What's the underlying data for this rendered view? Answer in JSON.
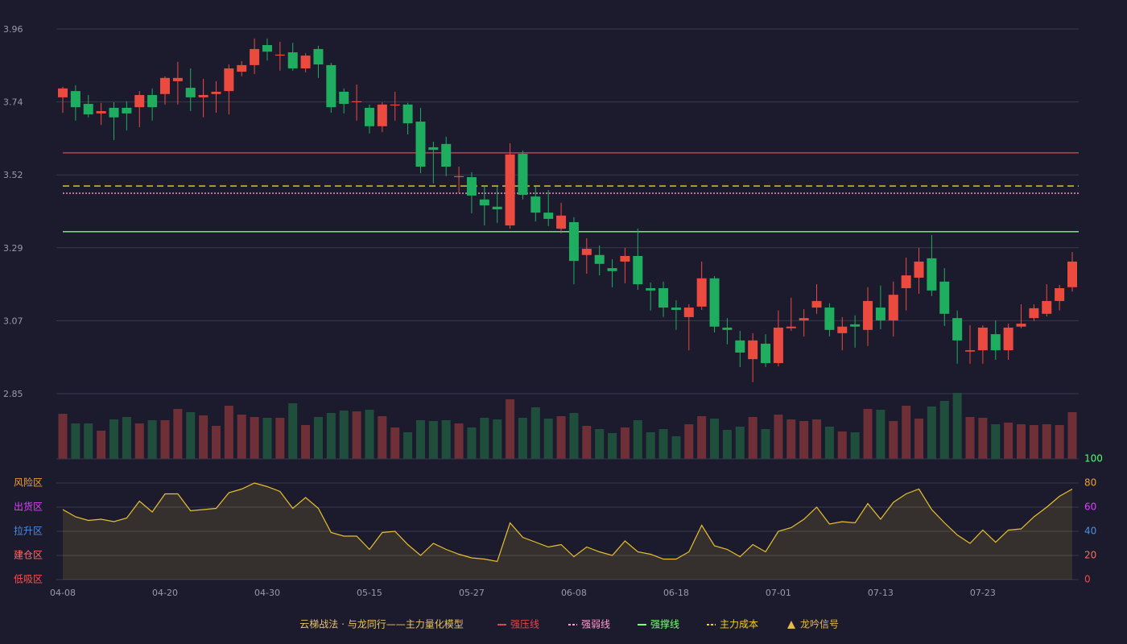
{
  "chart_data": {
    "type": "candlestick",
    "title": "云梯战法 · 与龙同行——主力量化模型",
    "categories": [
      "04-08",
      null,
      null,
      null,
      null,
      null,
      null,
      null,
      "04-20",
      null,
      null,
      null,
      null,
      null,
      null,
      null,
      "04-30",
      null,
      null,
      null,
      null,
      null,
      null,
      null,
      "05-15",
      null,
      null,
      null,
      null,
      null,
      null,
      null,
      "05-27",
      null,
      null,
      null,
      null,
      null,
      null,
      null,
      "06-08",
      null,
      null,
      null,
      null,
      null,
      null,
      null,
      "06-18",
      null,
      null,
      null,
      null,
      null,
      null,
      null,
      "07-01",
      null,
      null,
      null,
      null,
      null,
      null,
      null,
      "07-13",
      null,
      null,
      null,
      null,
      null,
      null,
      null,
      "07-23",
      null,
      null,
      null,
      null,
      null,
      null,
      null
    ],
    "open": [
      3.752,
      3.771,
      3.732,
      3.703,
      3.72,
      3.72,
      3.722,
      3.759,
      3.762,
      3.801,
      3.781,
      3.752,
      3.762,
      3.771,
      3.83,
      3.85,
      3.911,
      3.879,
      3.889,
      3.84,
      3.899,
      3.85,
      3.769,
      3.737,
      3.72,
      3.664,
      3.727,
      3.73,
      3.678,
      3.6,
      3.61,
      3.509,
      3.509,
      3.441,
      3.419,
      3.362,
      3.58,
      3.45,
      3.401,
      3.352,
      3.372,
      3.272,
      3.272,
      3.232,
      3.252,
      3.269,
      3.171,
      3.171,
      3.112,
      3.083,
      3.115,
      3.201,
      3.051,
      3.012,
      2.955,
      3.002,
      2.943,
      3.049,
      3.073,
      3.112,
      3.112,
      3.034,
      3.061,
      3.044,
      3.112,
      3.073,
      3.171,
      3.203,
      3.262,
      3.191,
      3.08,
      2.978,
      2.982,
      3.031,
      2.982,
      3.054,
      3.08,
      3.093,
      3.132,
      3.174
    ],
    "high": [
      3.784,
      3.789,
      3.759,
      3.735,
      3.737,
      3.74,
      3.771,
      3.779,
      3.816,
      3.86,
      3.84,
      3.808,
      3.801,
      3.852,
      3.862,
      3.931,
      3.931,
      3.921,
      3.918,
      3.886,
      3.909,
      3.857,
      3.779,
      3.791,
      3.73,
      3.737,
      3.769,
      3.735,
      3.72,
      3.617,
      3.632,
      3.541,
      3.524,
      3.482,
      3.48,
      3.612,
      3.59,
      3.48,
      3.47,
      3.431,
      3.387,
      3.323,
      3.301,
      3.259,
      3.294,
      3.352,
      3.188,
      3.191,
      3.134,
      3.122,
      3.252,
      3.208,
      3.08,
      3.041,
      3.034,
      3.031,
      3.103,
      3.142,
      3.107,
      3.183,
      3.125,
      3.083,
      3.088,
      3.174,
      3.179,
      3.191,
      3.264,
      3.294,
      3.333,
      3.232,
      3.103,
      3.058,
      3.058,
      3.073,
      3.063,
      3.122,
      3.122,
      3.183,
      3.181,
      3.281
    ],
    "low": [
      3.705,
      3.681,
      3.691,
      3.668,
      3.622,
      3.651,
      3.661,
      3.681,
      3.73,
      3.73,
      3.71,
      3.691,
      3.705,
      3.7,
      3.816,
      3.823,
      3.864,
      3.833,
      3.833,
      3.828,
      3.811,
      3.705,
      3.703,
      3.681,
      3.642,
      3.646,
      3.681,
      3.639,
      3.521,
      3.49,
      3.512,
      3.46,
      3.399,
      3.362,
      3.37,
      3.352,
      3.441,
      3.374,
      3.36,
      3.338,
      3.183,
      3.215,
      3.21,
      3.174,
      3.186,
      3.166,
      3.103,
      3.083,
      3.044,
      2.982,
      3.105,
      3.036,
      3.0,
      2.931,
      2.885,
      2.931,
      2.933,
      3.041,
      3.024,
      3.093,
      3.024,
      2.982,
      2.99,
      2.995,
      3.046,
      3.024,
      3.103,
      3.154,
      3.147,
      3.056,
      2.941,
      2.941,
      2.941,
      2.953,
      2.953,
      3.049,
      3.071,
      3.085,
      3.103,
      3.161
    ],
    "close": [
      3.779,
      3.722,
      3.7,
      3.71,
      3.691,
      3.703,
      3.759,
      3.722,
      3.811,
      3.811,
      3.752,
      3.759,
      3.769,
      3.84,
      3.85,
      3.899,
      3.891,
      3.882,
      3.84,
      3.879,
      3.852,
      3.722,
      3.732,
      3.74,
      3.664,
      3.73,
      3.73,
      3.673,
      3.541,
      3.592,
      3.541,
      3.512,
      3.453,
      3.423,
      3.411,
      3.578,
      3.455,
      3.401,
      3.382,
      3.392,
      3.254,
      3.291,
      3.245,
      3.223,
      3.269,
      3.183,
      3.164,
      3.112,
      3.105,
      3.112,
      3.201,
      3.054,
      3.044,
      2.975,
      3.012,
      2.943,
      3.051,
      3.054,
      3.08,
      3.132,
      3.044,
      3.054,
      3.054,
      3.132,
      3.073,
      3.151,
      3.21,
      3.252,
      3.164,
      3.093,
      3.012,
      2.982,
      3.051,
      2.982,
      3.051,
      3.063,
      3.11,
      3.132,
      3.171,
      3.252
    ],
    "volume": [
      56,
      44,
      44,
      35,
      49,
      52,
      44,
      48,
      48,
      62,
      58,
      54,
      41,
      66,
      55,
      52,
      51,
      51,
      69,
      42,
      52,
      57,
      60,
      59,
      61,
      53,
      39,
      33,
      48,
      47,
      48,
      44,
      39,
      51,
      49,
      74,
      51,
      64,
      50,
      53,
      57,
      41,
      37,
      32,
      39,
      48,
      33,
      37,
      28,
      43,
      53,
      50,
      36,
      40,
      52,
      37,
      55,
      49,
      47,
      49,
      40,
      34,
      33,
      62,
      61,
      47,
      66,
      50,
      65,
      72,
      82,
      52,
      51,
      43,
      45,
      43,
      42,
      43,
      42,
      58
    ],
    "up_color": "#eb4a3f",
    "down_color": "#1fae5f",
    "volume_up_color": "#6e2f37",
    "volume_down_color": "#1f4f3c",
    "ylim": [
      2.85,
      3.96
    ],
    "yticks": [
      2.85,
      {
        "value": 3.072,
        "label": "3.07"
      },
      {
        "value": 3.294,
        "label": "3.29"
      },
      {
        "value": 3.516,
        "label": "3.52"
      },
      {
        "value": 3.738,
        "label": "3.74"
      },
      3.96
    ],
    "grid": true,
    "lines": [
      {
        "name": "强压线",
        "value": 3.583,
        "color": "#e0474c",
        "style": "solid"
      },
      {
        "name": "强弱线",
        "value": 3.46,
        "color": "#ff9ecf",
        "style": "dotted"
      },
      {
        "name": "强撑线",
        "value": 3.343,
        "color": "#7cfc7c",
        "style": "solid"
      },
      {
        "name": "主力成本",
        "value": 3.482,
        "color": "#f5d020",
        "style": "dashed"
      }
    ],
    "signal": {
      "name": "龙吟信号",
      "color": "#e8b84a"
    },
    "oscillator": {
      "type": "line",
      "color": "#e8c030",
      "values": [
        58,
        52,
        49,
        50,
        48,
        51,
        65,
        56,
        71,
        71,
        57,
        58,
        59,
        72,
        75,
        80,
        77,
        73,
        59,
        68,
        59,
        39,
        36,
        36,
        25,
        39,
        40,
        29,
        20,
        30,
        25,
        21,
        18,
        17,
        15,
        47,
        35,
        31,
        27,
        29,
        19,
        27,
        23,
        20,
        32,
        23,
        21,
        17,
        17,
        23,
        45,
        28,
        25,
        19,
        29,
        23,
        40,
        43,
        50,
        60,
        46,
        48,
        47,
        63,
        50,
        64,
        71,
        75,
        58,
        47,
        37,
        30,
        41,
        31,
        41,
        42,
        52,
        60,
        69,
        75
      ],
      "ylim": [
        0,
        100
      ],
      "yticks": [
        0,
        20,
        40,
        60,
        80,
        100
      ],
      "tick_colors": [
        "#ff4545",
        "#ff6a5a",
        "#4a90e2",
        "#e040fb",
        "#f0a030",
        "#4cff6a"
      ],
      "zones": [
        {
          "label": "风险区",
          "value": 80,
          "color": "#f0a030"
        },
        {
          "label": "出货区",
          "value": 60,
          "color": "#e040fb"
        },
        {
          "label": "拉升区",
          "value": 40,
          "color": "#4a90e2"
        },
        {
          "label": "建仓区",
          "value": 20,
          "color": "#ff6b6b"
        },
        {
          "label": "低吸区",
          "value": 0,
          "color": "#ff4d4d"
        }
      ]
    }
  }
}
